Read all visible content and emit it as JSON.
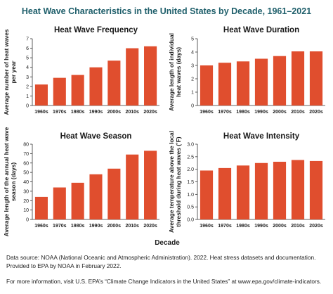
{
  "main_title": "Heat Wave Characteristics in the United States by Decade, 1961–2021",
  "x_axis_label": "Decade",
  "source_note": "Data source: NOAA (National Oceanic and Atmospheric Administration). 2022. Heat stress datasets and documentation. Provided to EPA by NOAA in February 2022.",
  "info_note": "For more information, visit U.S. EPA’s “Climate Change Indicators in the United States” at www.epa.gov/climate-indicators.",
  "bar_color": "#e04e2e",
  "chart_data": [
    {
      "type": "bar",
      "title": "Heat Wave Frequency",
      "ylabel": "Average number of heat waves per year",
      "categories": [
        "1960s",
        "1970s",
        "1980s",
        "1990s",
        "2000s",
        "2010s",
        "2020s"
      ],
      "values": [
        2.2,
        2.9,
        3.2,
        4.0,
        4.7,
        6.0,
        6.2
      ],
      "ylim": [
        0,
        7
      ],
      "yticks": [
        0,
        1,
        2,
        3,
        4,
        5,
        6,
        7
      ],
      "grid": false
    },
    {
      "type": "bar",
      "title": "Heat Wave Duration",
      "ylabel": "Average length of individual heat waves (days)",
      "categories": [
        "1960s",
        "1970s",
        "1980s",
        "1990s",
        "2000s",
        "2010s",
        "2020s"
      ],
      "values": [
        3.0,
        3.2,
        3.3,
        3.5,
        3.7,
        4.05,
        4.05
      ],
      "ylim": [
        0,
        5
      ],
      "yticks": [
        0,
        1,
        2,
        3,
        4,
        5
      ],
      "grid": false
    },
    {
      "type": "bar",
      "title": "Heat Wave Season",
      "ylabel": "Average length of the annual heat wave season (days)",
      "categories": [
        "1960s",
        "1970s",
        "1980s",
        "1990s",
        "2000s",
        "2010s",
        "2020s"
      ],
      "values": [
        24,
        34,
        39,
        48,
        54,
        69,
        73
      ],
      "ylim": [
        0,
        80
      ],
      "yticks": [
        0,
        10,
        20,
        30,
        40,
        50,
        60,
        70,
        80
      ],
      "grid": false
    },
    {
      "type": "bar",
      "title": "Heat Wave Intensity",
      "ylabel": "Average temperature above the local threshold during heat waves (˚F)",
      "categories": [
        "1960s",
        "1970s",
        "1980s",
        "1990s",
        "2000s",
        "2010s",
        "2020s"
      ],
      "values": [
        1.95,
        2.05,
        2.15,
        2.25,
        2.3,
        2.37,
        2.33
      ],
      "ylim": [
        0,
        3.0
      ],
      "yticks": [
        "0.0",
        "0.5",
        "1.0",
        "1.5",
        "2.0",
        "2.5",
        "3.0"
      ],
      "grid": false
    }
  ]
}
